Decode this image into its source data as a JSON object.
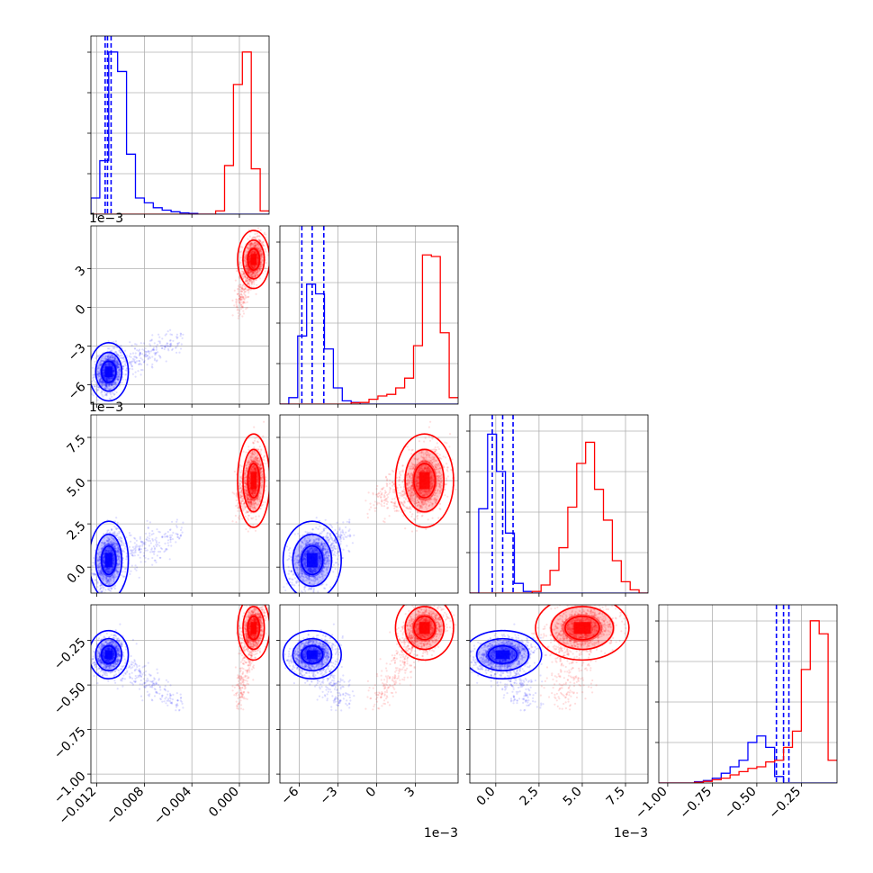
{
  "chart_data": {
    "type": "corner",
    "description_note": "",
    "grid": true,
    "params": [
      {
        "key": "p1",
        "lim": [
          -0.0125,
          0.0025
        ],
        "ticks": [
          -0.012,
          -0.008,
          -0.004,
          0.0
        ],
        "tick_labels": [
          "−0.012",
          "−0.008",
          "−0.004",
          "0.000"
        ],
        "offset_label": ""
      },
      {
        "key": "p2",
        "lim": [
          -0.0075,
          0.0063
        ],
        "ticks": [
          -0.006,
          -0.003,
          0.0,
          0.003
        ],
        "tick_labels": [
          "−6",
          "−3",
          "0",
          "3"
        ],
        "offset_label": "1e−3"
      },
      {
        "key": "p3",
        "lim": [
          -0.0015,
          0.0088
        ],
        "ticks": [
          0.0,
          0.0025,
          0.005,
          0.0075
        ],
        "tick_labels": [
          "0.0",
          "2.5",
          "5.0",
          "7.5"
        ],
        "offset_label": "1e−3"
      },
      {
        "key": "p4",
        "lim": [
          -1.05,
          -0.05
        ],
        "ticks": [
          -1.0,
          -0.75,
          -0.5,
          -0.25
        ],
        "tick_labels": [
          "−1.00",
          "−0.75",
          "−0.50",
          "−0.25"
        ],
        "offset_label": ""
      }
    ],
    "series": [
      {
        "color": "#0000ff",
        "means": [
          -0.011,
          -0.005,
          0.0004,
          -0.33
        ],
        "sds": [
          0.00055,
          0.00075,
          0.00075,
          0.045
        ],
        "tail_to": [
          -0.005,
          -0.0025,
          0.0018,
          -0.62
        ],
        "quantiles": [
          [
            -0.0113,
            -0.0111,
            -0.0108
          ],
          [
            -0.0058,
            -0.005,
            -0.0041
          ],
          [
            -0.0002,
            0.0004,
            0.001
          ],
          [
            -0.39,
            -0.35,
            -0.32
          ]
        ],
        "hist": [
          [
            0.1,
            0.33,
            1.0,
            0.88,
            0.37,
            0.1,
            0.07,
            0.04,
            0.025,
            0.015,
            0.008,
            0.005,
            0.0,
            0.0,
            0.0,
            0.0,
            0.0,
            0.0,
            0.0,
            0.0
          ],
          [
            0.0,
            0.04,
            0.42,
            0.74,
            0.68,
            0.34,
            0.1,
            0.02,
            0.01,
            0.0,
            0.0,
            0.0,
            0.0,
            0.0,
            0.0,
            0.0,
            0.0,
            0.0,
            0.0,
            0.0
          ],
          [
            0.0,
            0.52,
            0.98,
            0.75,
            0.37,
            0.06,
            0.01,
            0.0,
            0.0,
            0.0,
            0.0,
            0.0,
            0.0,
            0.0,
            0.0,
            0.0,
            0.0,
            0.0,
            0.0,
            0.0
          ],
          [
            0.0,
            0.0,
            0.0,
            0.0,
            0.008,
            0.015,
            0.03,
            0.06,
            0.1,
            0.14,
            0.25,
            0.29,
            0.22,
            0.04,
            0.0,
            0.0,
            0.0,
            0.0,
            0.0,
            0.0
          ]
        ]
      },
      {
        "color": "#ff0000",
        "means": [
          0.0012,
          0.0037,
          0.005,
          -0.18
        ],
        "sds": [
          0.00045,
          0.00075,
          0.0009,
          0.06
        ],
        "tail_to": [
          0.0,
          0.0,
          0.004,
          -0.6
        ],
        "quantiles": null,
        "hist": [
          [
            0.0,
            0.0,
            0.0,
            0.0,
            0.0,
            0.0,
            0.0,
            0.0,
            0.0,
            0.0,
            0.0,
            0.0,
            0.0,
            0.0,
            0.02,
            0.3,
            0.8,
            1.0,
            0.28,
            0.02
          ],
          [
            0.0,
            0.0,
            0.0,
            0.0,
            0.0,
            0.0,
            0.0,
            0.0,
            0.008,
            0.01,
            0.03,
            0.05,
            0.06,
            0.1,
            0.16,
            0.36,
            0.92,
            0.91,
            0.44,
            0.04
          ],
          [
            0.0,
            0.0,
            0.0,
            0.0,
            0.0,
            0.0,
            0.0,
            0.01,
            0.05,
            0.14,
            0.28,
            0.53,
            0.8,
            0.93,
            0.64,
            0.45,
            0.2,
            0.07,
            0.02,
            0.0
          ],
          [
            0.0,
            0.0,
            0.0,
            0.0,
            0.004,
            0.01,
            0.02,
            0.03,
            0.05,
            0.07,
            0.09,
            0.1,
            0.13,
            0.14,
            0.22,
            0.32,
            0.7,
            1.0,
            0.92,
            0.14
          ]
        ]
      }
    ]
  }
}
